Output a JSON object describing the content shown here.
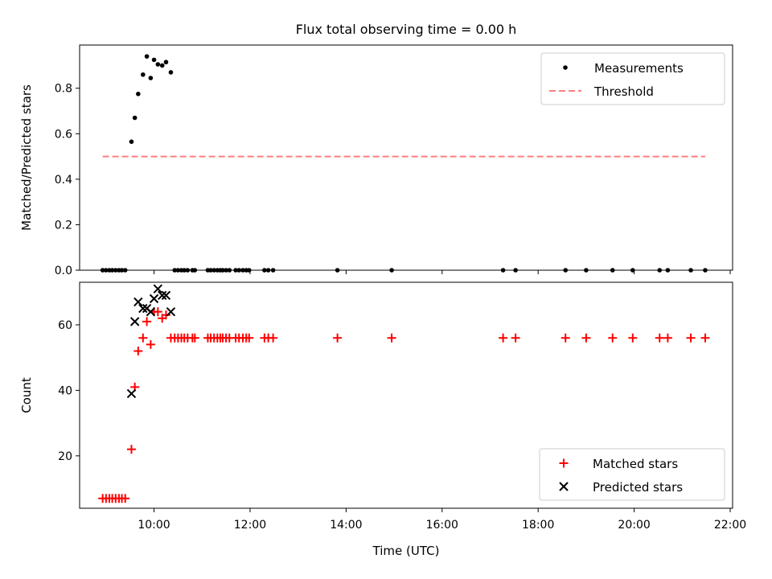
{
  "title": "Flux total observing time = 0.00 h",
  "colors": {
    "measurements": "#000000",
    "threshold": "#ff7f7f",
    "matched": "#ff0000",
    "predicted": "#000000"
  },
  "chart_data": [
    {
      "type": "scatter",
      "ylabel": "Matched/Predicted stars",
      "xlim": [
        8.45,
        22.05
      ],
      "ylim": [
        0,
        0.99
      ],
      "yticks": [
        0.0,
        0.2,
        0.4,
        0.6,
        0.8
      ],
      "ytick_labels": [
        "0.0",
        "0.2",
        "0.4",
        "0.6",
        "0.8"
      ],
      "grid": false,
      "legend_position": "top-right",
      "legend": [
        "Measurements",
        "Threshold"
      ],
      "series": [
        {
          "name": "Measurements",
          "marker": "dot",
          "x": [
            8.93,
            9.0,
            9.07,
            9.13,
            9.2,
            9.27,
            9.33,
            9.4,
            9.53,
            9.6,
            9.67,
            9.77,
            9.85,
            9.93,
            10.0,
            10.08,
            10.17,
            10.25,
            10.35,
            10.43,
            10.5,
            10.57,
            10.63,
            10.7,
            10.8,
            10.85,
            11.12,
            11.18,
            11.25,
            11.32,
            11.38,
            11.43,
            11.5,
            11.57,
            11.7,
            11.77,
            11.85,
            11.92,
            11.98,
            12.3,
            12.38,
            12.48,
            13.82,
            14.95,
            17.27,
            17.53,
            18.57,
            19.0,
            19.55,
            19.97,
            20.53,
            20.7,
            21.18,
            21.48
          ],
          "y": [
            0,
            0,
            0,
            0,
            0,
            0,
            0,
            0,
            0.565,
            0.67,
            0.775,
            0.86,
            0.94,
            0.845,
            0.925,
            0.905,
            0.9,
            0.915,
            0.87,
            0,
            0,
            0,
            0,
            0,
            0,
            0,
            0,
            0,
            0,
            0,
            0,
            0,
            0,
            0,
            0,
            0,
            0,
            0,
            0,
            0,
            0,
            0,
            0,
            0,
            0,
            0,
            0,
            0,
            0,
            0,
            0,
            0,
            0,
            0
          ]
        },
        {
          "name": "Threshold",
          "type": "line",
          "style": "dashed",
          "x": [
            8.93,
            21.48
          ],
          "y": [
            0.5,
            0.5
          ]
        }
      ]
    },
    {
      "type": "scatter",
      "xlabel": "Time (UTC)",
      "ylabel": "Count",
      "xlim": [
        8.45,
        22.05
      ],
      "ylim": [
        4,
        73
      ],
      "xticks": [
        10,
        12,
        14,
        16,
        18,
        20,
        22
      ],
      "xtick_labels": [
        "10:00",
        "12:00",
        "14:00",
        "16:00",
        "18:00",
        "20:00",
        "22:00"
      ],
      "yticks": [
        20,
        40,
        60
      ],
      "ytick_labels": [
        "20",
        "40",
        "60"
      ],
      "grid": false,
      "legend_position": "bottom-right",
      "legend": [
        "Matched stars",
        "Predicted stars"
      ],
      "series": [
        {
          "name": "Matched stars",
          "marker": "plus",
          "x": [
            8.93,
            9.0,
            9.07,
            9.13,
            9.2,
            9.27,
            9.33,
            9.4,
            9.53,
            9.6,
            9.67,
            9.77,
            9.85,
            9.93,
            10.0,
            10.08,
            10.17,
            10.25,
            10.35,
            10.43,
            10.5,
            10.57,
            10.63,
            10.7,
            10.8,
            10.85,
            11.12,
            11.18,
            11.25,
            11.32,
            11.38,
            11.43,
            11.5,
            11.57,
            11.7,
            11.77,
            11.85,
            11.92,
            11.98,
            12.3,
            12.38,
            12.48,
            13.82,
            14.95,
            17.27,
            17.53,
            18.57,
            19.0,
            19.55,
            19.97,
            20.53,
            20.7,
            21.18,
            21.48
          ],
          "y": [
            7,
            7,
            7,
            7,
            7,
            7,
            7,
            7,
            22,
            41,
            52,
            56,
            61,
            54,
            64,
            64,
            62,
            63,
            56,
            56,
            56,
            56,
            56,
            56,
            56,
            56,
            56,
            56,
            56,
            56,
            56,
            56,
            56,
            56,
            56,
            56,
            56,
            56,
            56,
            56,
            56,
            56,
            56,
            56,
            56,
            56,
            56,
            56,
            56,
            56,
            56,
            56,
            56,
            56
          ]
        },
        {
          "name": "Predicted stars",
          "marker": "x",
          "x": [
            9.53,
            9.6,
            9.67,
            9.77,
            9.85,
            9.93,
            10.0,
            10.08,
            10.17,
            10.25,
            10.35
          ],
          "y": [
            39,
            61,
            67,
            65,
            65,
            64,
            68,
            71,
            69,
            69,
            64
          ]
        }
      ]
    }
  ]
}
